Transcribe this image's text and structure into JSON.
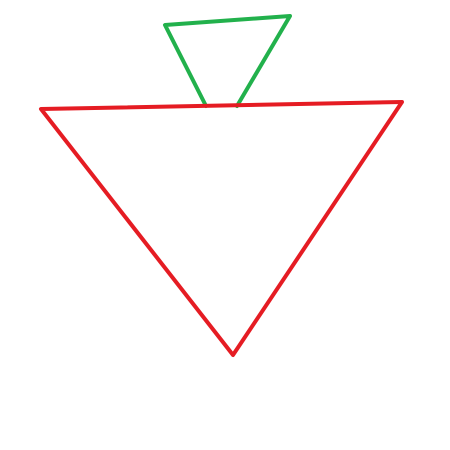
{
  "diagram": {
    "background_color": "#ffffff",
    "shapes": [
      {
        "shape": "inverted-triangle",
        "size": "large",
        "stroke_color": "#e51c23"
      },
      {
        "shape": "inverted-triangle",
        "size": "small",
        "stroke_color": "#22b14c"
      }
    ]
  }
}
